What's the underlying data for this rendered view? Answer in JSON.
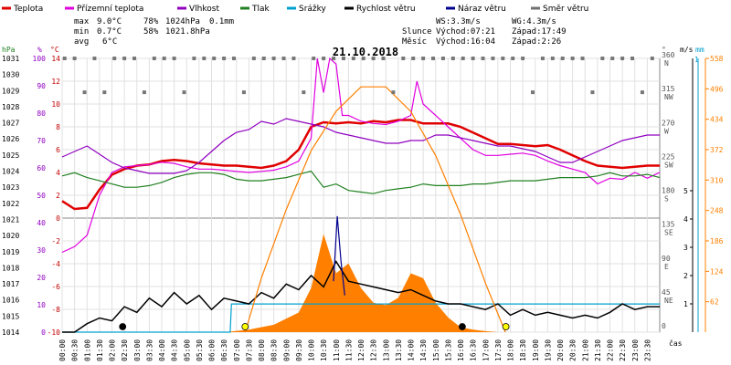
{
  "chart_data": {
    "type": "line",
    "title": "21.10.2018",
    "xlabel": "čas",
    "legend": {
      "placement": "top",
      "items": [
        {
          "name": "Teplota",
          "color": "#e00000"
        },
        {
          "name": "Přízemní teplota",
          "color": "#e000e0"
        },
        {
          "name": "Vlhkost",
          "color": "#9000c0"
        },
        {
          "name": "Tlak",
          "color": "#208020"
        },
        {
          "name": "Srážky",
          "color": "#00a0d0"
        },
        {
          "name": "Rychlost větru",
          "color": "#000000"
        },
        {
          "name": "Náraz větru",
          "color": "#000090"
        },
        {
          "name": "Směr větru",
          "color": "#707070"
        }
      ]
    },
    "stats": {
      "max": {
        "label": "max",
        "temp": "9.0°C",
        "hum": "78%",
        "press": "1024hPa",
        "rain": "0.1mm"
      },
      "min": {
        "label": "min",
        "temp": "0.7°C",
        "hum": "58%",
        "press": "1021.8hPa"
      },
      "avg": {
        "label": "avg",
        "temp": "6°C"
      }
    },
    "wind_info": {
      "ws": "WS:3.3m/s",
      "wg": "WG:4.3m/s"
    },
    "sun": {
      "label": "Slunce",
      "rise": "Východ:07:21",
      "set": "Západ:17:49"
    },
    "moon": {
      "label": "Měsíc",
      "rise": "Východ:16:04",
      "set": "Západ:2:26"
    },
    "axes": {
      "pressure": {
        "unit": "hPa",
        "ticks": [
          "1031",
          "1030",
          "1029",
          "1028",
          "1027",
          "1026",
          "1025",
          "1024",
          "1023",
          "1022",
          "1021",
          "1020",
          "1019",
          "1018",
          "1017",
          "1016",
          "1015",
          "1014"
        ]
      },
      "humidity": {
        "unit": "%",
        "ticks": [
          "100",
          "90",
          "80",
          "70",
          "60",
          "50",
          "40",
          "30",
          "20",
          "10",
          "0"
        ]
      },
      "temperature": {
        "unit": "°C",
        "ticks": [
          "14",
          "12",
          "10",
          "8",
          "6",
          "4",
          "2",
          "0",
          "-2",
          "-4",
          "-6",
          "-8",
          "-10"
        ]
      },
      "direction": {
        "unit": "°",
        "ticks": [
          {
            "deg": "360",
            "dir": "N"
          },
          {
            "deg": "315",
            "dir": "NW"
          },
          {
            "deg": "270",
            "dir": "W"
          },
          {
            "deg": "225",
            "dir": "SW"
          },
          {
            "deg": "180",
            "dir": "S"
          },
          {
            "deg": "135",
            "dir": "SE"
          },
          {
            "deg": "90",
            "dir": "E"
          },
          {
            "deg": "45",
            "dir": "NE"
          },
          {
            "deg": "0",
            "dir": ""
          }
        ]
      },
      "wind": {
        "unit": "m/s",
        "ticks": [
          "5",
          "4",
          "3",
          "2",
          "1"
        ]
      },
      "rain": {
        "unit": "mm",
        "ticks": [
          "1"
        ]
      },
      "radiation": {
        "ticks": [
          "558",
          "496",
          "434",
          "372",
          "310",
          "248",
          "186",
          "124",
          "62"
        ]
      },
      "time_ticks": [
        "00:00",
        "00:30",
        "01:00",
        "01:30",
        "02:00",
        "02:30",
        "03:00",
        "03:30",
        "04:00",
        "04:30",
        "05:00",
        "05:30",
        "06:00",
        "06:30",
        "07:00",
        "07:30",
        "08:00",
        "08:30",
        "09:00",
        "09:30",
        "10:00",
        "10:30",
        "11:00",
        "11:30",
        "12:00",
        "12:30",
        "13:00",
        "13:30",
        "14:00",
        "14:30",
        "15:00",
        "15:30",
        "16:00",
        "16:30",
        "17:00",
        "17:30",
        "18:00",
        "18:30",
        "19:00",
        "19:30",
        "20:00",
        "20:30",
        "21:00",
        "21:30",
        "22:00",
        "22:30",
        "23:00",
        "23:30"
      ]
    },
    "series": [
      {
        "name": "Teplota",
        "unit": "°C",
        "x": [
          0,
          0.5,
          1,
          1.5,
          2,
          2.5,
          3,
          3.5,
          4,
          4.5,
          5,
          5.5,
          6,
          6.5,
          7,
          7.5,
          8,
          8.5,
          9,
          9.5,
          10,
          10.5,
          11,
          11.5,
          12,
          12.5,
          13,
          13.5,
          14,
          14.5,
          15,
          15.5,
          16,
          16.5,
          17,
          17.5,
          18,
          18.5,
          19,
          19.5,
          20,
          20.5,
          21,
          21.5,
          22,
          22.5,
          23,
          23.5,
          24
        ],
        "y": [
          1.5,
          0.8,
          0.9,
          2.5,
          3.8,
          4.3,
          4.6,
          4.7,
          5.0,
          5.1,
          5.0,
          4.8,
          4.7,
          4.6,
          4.6,
          4.5,
          4.4,
          4.6,
          5.0,
          6.0,
          8.0,
          8.4,
          8.3,
          8.4,
          8.3,
          8.5,
          8.4,
          8.6,
          8.6,
          8.3,
          8.3,
          8.3,
          8.0,
          7.5,
          7.0,
          6.5,
          6.5,
          6.4,
          6.3,
          6.4,
          6.0,
          5.5,
          5.0,
          4.6,
          4.5,
          4.4,
          4.5,
          4.6,
          4.6
        ]
      },
      {
        "name": "Přízemní teplota",
        "unit": "°C",
        "x": [
          0,
          0.5,
          1,
          1.5,
          2,
          2.5,
          3,
          3.5,
          4,
          4.5,
          5,
          5.5,
          6,
          6.5,
          7,
          7.5,
          8,
          8.5,
          9,
          9.5,
          10,
          10.25,
          10.5,
          10.75,
          11,
          11.25,
          11.5,
          12,
          12.5,
          13,
          13.5,
          14,
          14.25,
          14.5,
          15,
          15.5,
          16,
          16.5,
          17,
          17.5,
          18,
          18.5,
          19,
          19.5,
          20,
          20.5,
          21,
          21.5,
          22,
          22.5,
          23,
          23.5,
          24
        ],
        "y": [
          -3.0,
          -2.5,
          -1.5,
          2.0,
          4.0,
          4.5,
          4.6,
          4.7,
          4.9,
          4.8,
          4.5,
          4.3,
          4.3,
          4.2,
          4.1,
          4.0,
          4.1,
          4.2,
          4.5,
          5.0,
          7.0,
          14.0,
          11.0,
          14.0,
          13.5,
          9.0,
          9.0,
          8.5,
          8.3,
          8.2,
          8.5,
          9.0,
          12.0,
          10.0,
          9.0,
          8.0,
          7.0,
          6.0,
          5.5,
          5.5,
          5.6,
          5.7,
          5.5,
          5.0,
          4.6,
          4.3,
          4.0,
          3.0,
          3.5,
          3.4,
          4.0,
          3.5,
          4.0
        ]
      },
      {
        "name": "Vlhkost",
        "unit": "%",
        "x": [
          0,
          0.5,
          1,
          1.5,
          2,
          2.5,
          3,
          3.5,
          4,
          4.5,
          5,
          5.5,
          6,
          6.5,
          7,
          7.5,
          8,
          8.5,
          9,
          9.5,
          10,
          10.5,
          11,
          11.5,
          12,
          12.5,
          13,
          13.5,
          14,
          14.5,
          15,
          15.5,
          16,
          16.5,
          17,
          17.5,
          18,
          18.5,
          19,
          19.5,
          20,
          20.5,
          21,
          21.5,
          22,
          22.5,
          23,
          23.5,
          24
        ],
        "y": [
          64,
          66,
          68,
          65,
          62,
          60,
          59,
          58,
          58,
          58,
          59,
          62,
          66,
          70,
          73,
          74,
          77,
          76,
          78,
          77,
          76,
          75,
          73,
          72,
          71,
          70,
          69,
          69,
          70,
          70,
          72,
          72,
          71,
          70,
          69,
          68,
          68,
          67,
          66,
          64,
          62,
          62,
          64,
          66,
          68,
          70,
          71,
          72,
          72
        ]
      },
      {
        "name": "Tlak",
        "unit": "hPa",
        "x": [
          0,
          0.5,
          1,
          1.5,
          2,
          2.5,
          3,
          3.5,
          4,
          4.5,
          5,
          5.5,
          6,
          6.5,
          7,
          7.5,
          8,
          8.5,
          9,
          9.5,
          10,
          10.5,
          11,
          11.5,
          12,
          12.5,
          13,
          13.5,
          14,
          14.5,
          15,
          15.5,
          16,
          16.5,
          17,
          17.5,
          18,
          18.5,
          19,
          19.5,
          20,
          20.5,
          21,
          21.5,
          22,
          22.5,
          23,
          23.5,
          24
        ],
        "y": [
          1023.7,
          1023.9,
          1023.6,
          1023.4,
          1023.2,
          1023.0,
          1023.0,
          1023.1,
          1023.3,
          1023.6,
          1023.8,
          1023.9,
          1023.9,
          1023.8,
          1023.5,
          1023.4,
          1023.4,
          1023.5,
          1023.6,
          1023.8,
          1024.0,
          1023.0,
          1023.2,
          1022.8,
          1022.7,
          1022.6,
          1022.8,
          1022.9,
          1023.0,
          1023.2,
          1023.1,
          1023.1,
          1023.1,
          1023.2,
          1023.2,
          1023.3,
          1023.4,
          1023.4,
          1023.4,
          1023.5,
          1023.6,
          1023.6,
          1023.6,
          1023.7,
          1023.9,
          1023.7,
          1023.7,
          1023.8,
          1023.6
        ]
      },
      {
        "name": "Srážky",
        "unit": "mm",
        "x": [
          0,
          6.75,
          6.8,
          24
        ],
        "y": [
          0,
          0,
          0.1,
          0.1
        ]
      },
      {
        "name": "Rychlost větru",
        "unit": "m/s",
        "x": [
          0,
          0.5,
          1,
          1.5,
          2,
          2.5,
          3,
          3.5,
          4,
          4.5,
          5,
          5.5,
          6,
          6.5,
          7,
          7.5,
          8,
          8.5,
          9,
          9.5,
          10,
          10.5,
          11,
          11.5,
          12,
          12.5,
          13,
          13.5,
          14,
          14.5,
          15,
          15.5,
          16,
          16.5,
          17,
          17.5,
          18,
          18.5,
          19,
          19.5,
          20,
          20.5,
          21,
          21.5,
          22,
          22.5,
          23,
          23.5,
          24
        ],
        "y": [
          0,
          0,
          0.3,
          0.5,
          0.4,
          0.9,
          0.7,
          1.2,
          0.9,
          1.4,
          1.0,
          1.3,
          0.8,
          1.2,
          1.1,
          1.0,
          1.4,
          1.2,
          1.7,
          1.5,
          2.0,
          1.6,
          2.5,
          1.8,
          1.7,
          1.6,
          1.5,
          1.4,
          1.5,
          1.3,
          1.1,
          1.0,
          1.0,
          0.9,
          0.8,
          1.0,
          0.6,
          0.8,
          0.6,
          0.7,
          0.6,
          0.5,
          0.6,
          0.5,
          0.7,
          1.0,
          0.8,
          0.9,
          0.9
        ]
      },
      {
        "name": "Náraz větru",
        "unit": "m/s",
        "x": [
          10.9,
          11.05,
          11.2,
          11.35
        ],
        "y": [
          1.8,
          4.1,
          2.5,
          1.3
        ]
      },
      {
        "name": "Směr větru",
        "unit": "°",
        "type": "scatter",
        "x": [
          0.1,
          0.5,
          0.9,
          1.3,
          1.7,
          2.1,
          2.5,
          2.9,
          3.3,
          3.7,
          4.1,
          4.5,
          4.9,
          5.3,
          5.7,
          6.1,
          6.5,
          6.9,
          7.3,
          7.7,
          8.1,
          8.5,
          8.9,
          9.3,
          9.7,
          10.1,
          10.5,
          10.9,
          11.3,
          11.7,
          12.1,
          12.5,
          12.9,
          13.3,
          13.7,
          14.1,
          14.5,
          14.9,
          15.3,
          15.7,
          16.1,
          16.5,
          16.9,
          17.3,
          17.7,
          18.1,
          18.5,
          18.9,
          19.3,
          19.7,
          20.1,
          20.5,
          20.9,
          21.3,
          21.7,
          22.1,
          22.5,
          22.9,
          23.3,
          23.7
        ],
        "y": [
          360,
          360,
          315,
          360,
          315,
          360,
          360,
          360,
          315,
          360,
          360,
          360,
          315,
          360,
          360,
          360,
          360,
          360,
          315,
          360,
          360,
          360,
          360,
          360,
          315,
          360,
          360,
          360,
          360,
          360,
          360,
          360,
          360,
          315,
          360,
          360,
          360,
          360,
          360,
          360,
          360,
          360,
          360,
          360,
          360,
          360,
          360,
          315,
          360,
          360,
          360,
          360,
          360,
          315,
          360,
          360,
          360,
          360,
          315,
          360
        ]
      },
      {
        "name": "Solar",
        "type": "area",
        "color": "#ff8000",
        "x": [
          6.5,
          7.5,
          8.5,
          9.5,
          10,
          10.5,
          11,
          11.5,
          12,
          12.5,
          13,
          13.5,
          14,
          14.5,
          15,
          15.5,
          16,
          16.5,
          17,
          17.5
        ],
        "y": [
          0,
          5,
          15,
          40,
          90,
          200,
          120,
          140,
          90,
          60,
          55,
          70,
          120,
          110,
          60,
          30,
          10,
          5,
          2,
          0
        ]
      },
      {
        "name": "Sun elevation",
        "type": "line",
        "color": "#ff8000",
        "x": [
          7.35,
          8,
          9,
          10,
          11,
          12,
          13,
          14,
          15,
          16,
          17,
          17.8
        ],
        "y": [
          0,
          110,
          250,
          370,
          450,
          500,
          500,
          450,
          360,
          240,
          100,
          0
        ]
      }
    ],
    "markers": [
      {
        "type": "sunrise",
        "time": 7.35,
        "color": "#ffff00"
      },
      {
        "type": "sunset",
        "time": 17.82,
        "color": "#ffff00"
      },
      {
        "type": "moonset",
        "time": 2.43,
        "color": "#000000"
      },
      {
        "type": "moonrise",
        "time": 16.07,
        "color": "#000000"
      }
    ],
    "grid": true
  }
}
